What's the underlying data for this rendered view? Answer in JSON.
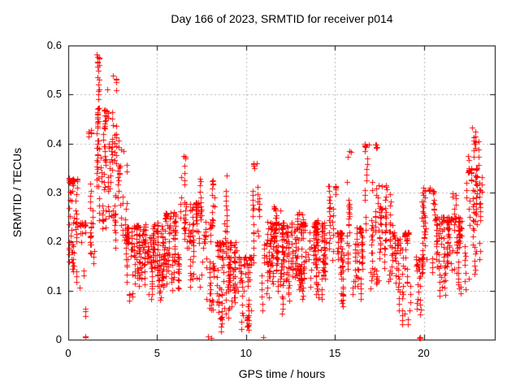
{
  "chart_data": {
    "type": "scatter",
    "title": "Day 166 of 2023, SRMTID for receiver p014",
    "xlabel": "GPS time / hours",
    "ylabel": "SRMTID / TECUs",
    "xlim": [
      0,
      24
    ],
    "ylim": [
      0,
      0.6
    ],
    "xticks": [
      0,
      5,
      10,
      15,
      20
    ],
    "xtick_labels": [
      "0",
      "5",
      "10",
      "15",
      "20"
    ],
    "yticks": [
      0,
      0.1,
      0.2,
      0.3,
      0.4,
      0.5,
      0.6
    ],
    "ytick_labels": [
      "0",
      "0.1",
      "0.2",
      "0.3",
      "0.4",
      "0.5",
      "0.6"
    ],
    "grid": true,
    "legend": "none",
    "marker": "plus",
    "colors": {
      "points": "#ff0000",
      "grid": "#b0b0b0",
      "axis": "#000000",
      "background": "#ffffff"
    },
    "seed": 42,
    "clusters_format": [
      "hour_start",
      "hour_end",
      "tecu_min",
      "tecu_max",
      "n_points"
    ],
    "clusters": [
      [
        0.02,
        0.5,
        0.15,
        0.33,
        55
      ],
      [
        0.05,
        0.45,
        0.11,
        0.16,
        8
      ],
      [
        0.5,
        1.05,
        0.1,
        0.24,
        22
      ],
      [
        0.88,
        1.0,
        0.004,
        0.006,
        2
      ],
      [
        0.9,
        1.0,
        0.04,
        0.08,
        3
      ],
      [
        1.05,
        1.45,
        0.15,
        0.43,
        30
      ],
      [
        1.5,
        1.75,
        0.3,
        0.58,
        35
      ],
      [
        1.55,
        2.3,
        0.22,
        0.4,
        55
      ],
      [
        1.9,
        2.3,
        0.38,
        0.475,
        20
      ],
      [
        2.35,
        2.7,
        0.3,
        0.535,
        30
      ],
      [
        2.4,
        2.75,
        0.17,
        0.3,
        15
      ],
      [
        2.75,
        3.3,
        0.14,
        0.42,
        40
      ],
      [
        3.3,
        4.4,
        0.1,
        0.235,
        110
      ],
      [
        3.4,
        3.65,
        0.07,
        0.1,
        6
      ],
      [
        4.4,
        5.4,
        0.08,
        0.24,
        110
      ],
      [
        5.4,
        6.25,
        0.1,
        0.26,
        90
      ],
      [
        6.3,
        6.68,
        0.2,
        0.375,
        25
      ],
      [
        6.6,
        7.55,
        0.1,
        0.28,
        70
      ],
      [
        7.25,
        7.5,
        0.22,
        0.33,
        10
      ],
      [
        7.6,
        8.25,
        0.06,
        0.24,
        45
      ],
      [
        7.85,
        8.05,
        0.004,
        0.006,
        2
      ],
      [
        8.0,
        8.25,
        0.24,
        0.325,
        12
      ],
      [
        8.3,
        9.5,
        0.04,
        0.2,
        120
      ],
      [
        8.55,
        8.7,
        0.015,
        0.05,
        6
      ],
      [
        8.8,
        9.0,
        0.2,
        0.33,
        12
      ],
      [
        9.5,
        10.3,
        0.02,
        0.17,
        60
      ],
      [
        9.95,
        10.1,
        0.02,
        0.06,
        5
      ],
      [
        10.35,
        10.8,
        0.12,
        0.36,
        30
      ],
      [
        10.85,
        11.2,
        0.05,
        0.2,
        22
      ],
      [
        10.9,
        11.05,
        0.004,
        0.006,
        2
      ],
      [
        11.2,
        12.6,
        0.08,
        0.24,
        150
      ],
      [
        11.55,
        11.95,
        0.2,
        0.275,
        16
      ],
      [
        12.0,
        12.2,
        0.05,
        0.09,
        5
      ],
      [
        12.6,
        14.5,
        0.08,
        0.24,
        190
      ],
      [
        12.85,
        13.2,
        0.2,
        0.27,
        14
      ],
      [
        13.9,
        14.15,
        0.18,
        0.245,
        10
      ],
      [
        14.6,
        15.1,
        0.14,
        0.315,
        28
      ],
      [
        15.1,
        15.65,
        0.08,
        0.22,
        45
      ],
      [
        15.35,
        15.6,
        0.05,
        0.1,
        6
      ],
      [
        15.65,
        16.0,
        0.12,
        0.39,
        25
      ],
      [
        16.0,
        16.65,
        0.08,
        0.23,
        55
      ],
      [
        16.65,
        17.4,
        0.1,
        0.4,
        55
      ],
      [
        17.4,
        18.25,
        0.08,
        0.32,
        70
      ],
      [
        18.25,
        19.2,
        0.03,
        0.22,
        75
      ],
      [
        19.2,
        19.9,
        0.03,
        0.17,
        30
      ],
      [
        19.65,
        19.88,
        0.004,
        0.006,
        3
      ],
      [
        19.9,
        20.65,
        0.12,
        0.31,
        55
      ],
      [
        20.65,
        22.35,
        0.09,
        0.25,
        150
      ],
      [
        21.6,
        21.95,
        0.22,
        0.3,
        10
      ],
      [
        22.35,
        23.3,
        0.12,
        0.35,
        80
      ],
      [
        22.5,
        23.1,
        0.3,
        0.435,
        18
      ]
    ],
    "peaks": [
      [
        1.62,
        0.582
      ],
      [
        1.66,
        0.565
      ],
      [
        2.2,
        0.51
      ],
      [
        2.5,
        0.538
      ],
      [
        6.48,
        0.375
      ],
      [
        8.9,
        0.335
      ],
      [
        10.62,
        0.359
      ],
      [
        15.82,
        0.385
      ],
      [
        16.9,
        0.398
      ],
      [
        22.7,
        0.433
      ]
    ]
  }
}
